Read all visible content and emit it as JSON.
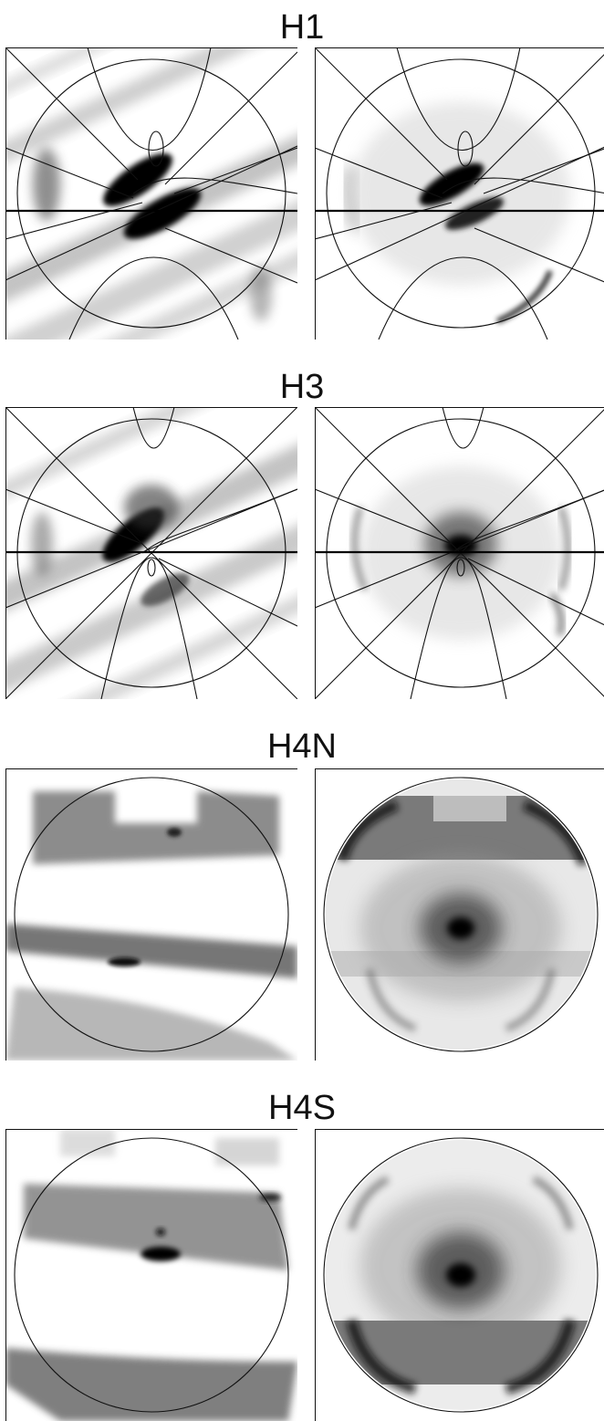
{
  "colors": {
    "ink": "#111111",
    "background": "#ffffff"
  },
  "rows": [
    {
      "id": "h1",
      "title": "H1"
    },
    {
      "id": "h3",
      "title": "H3"
    },
    {
      "id": "h4n",
      "title": "H4N"
    },
    {
      "id": "h4s",
      "title": "H4S"
    }
  ]
}
